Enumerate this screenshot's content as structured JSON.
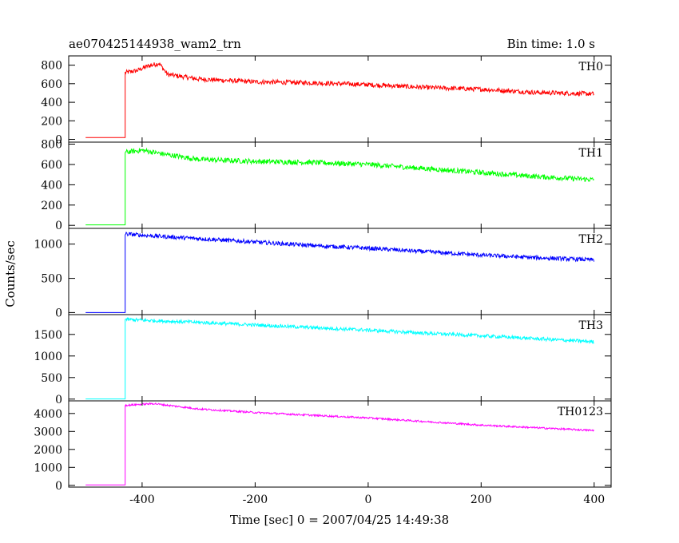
{
  "header": {
    "title": "ae070425144938_wam2_trn",
    "bin_time": "Bin time: 1.0 s"
  },
  "axes": {
    "ylabel": "Counts/sec",
    "xlabel": "Time [sec] 0 = 2007/04/25 14:49:38"
  },
  "chart_data": {
    "type": "line",
    "title": "ae070425144938_wam2_trn",
    "xlabel": "Time [sec] 0 = 2007/04/25 14:49:38",
    "ylabel": "Counts/sec",
    "xlim": [
      -530,
      430
    ],
    "xticks": [
      -400,
      -200,
      0,
      200,
      400
    ],
    "onset_time": -430,
    "panels": [
      {
        "name": "TH0",
        "color": "#ff0000",
        "ylim": [
          -30,
          900
        ],
        "yticks": [
          0,
          200,
          400,
          600,
          800
        ],
        "start_time": -500,
        "pre_level": 20,
        "points": [
          [
            -430,
            720
          ],
          [
            -410,
            740
          ],
          [
            -390,
            790
          ],
          [
            -370,
            820
          ],
          [
            -355,
            700
          ],
          [
            -300,
            650
          ],
          [
            -200,
            620
          ],
          [
            -100,
            610
          ],
          [
            0,
            590
          ],
          [
            100,
            560
          ],
          [
            200,
            540
          ],
          [
            300,
            505
          ],
          [
            400,
            490
          ]
        ],
        "noise": 25
      },
      {
        "name": "TH1",
        "color": "#00ff00",
        "ylim": [
          -30,
          820
        ],
        "yticks": [
          0,
          200,
          400,
          600,
          800
        ],
        "start_time": -500,
        "pre_level": 5,
        "points": [
          [
            -430,
            720
          ],
          [
            -400,
            740
          ],
          [
            -360,
            700
          ],
          [
            -300,
            650
          ],
          [
            -200,
            630
          ],
          [
            -100,
            620
          ],
          [
            0,
            600
          ],
          [
            100,
            560
          ],
          [
            200,
            520
          ],
          [
            300,
            480
          ],
          [
            400,
            450
          ]
        ],
        "noise": 25
      },
      {
        "name": "TH2",
        "color": "#0000ff",
        "ylim": [
          -30,
          1230
        ],
        "yticks": [
          0,
          500,
          1000
        ],
        "start_time": -500,
        "pre_level": 0,
        "points": [
          [
            -430,
            1150
          ],
          [
            -400,
            1130
          ],
          [
            -300,
            1080
          ],
          [
            -200,
            1030
          ],
          [
            -100,
            980
          ],
          [
            0,
            940
          ],
          [
            100,
            890
          ],
          [
            200,
            840
          ],
          [
            300,
            800
          ],
          [
            400,
            770
          ]
        ],
        "noise": 30
      },
      {
        "name": "TH3",
        "color": "#00ffff",
        "ylim": [
          -40,
          1960
        ],
        "yticks": [
          0,
          500,
          1000,
          1500
        ],
        "start_time": -500,
        "pre_level": 5,
        "points": [
          [
            -430,
            1850
          ],
          [
            -400,
            1830
          ],
          [
            -300,
            1780
          ],
          [
            -200,
            1720
          ],
          [
            -100,
            1660
          ],
          [
            0,
            1600
          ],
          [
            100,
            1530
          ],
          [
            200,
            1470
          ],
          [
            300,
            1400
          ],
          [
            400,
            1330
          ]
        ],
        "noise": 40
      },
      {
        "name": "TH0123",
        "color": "#ff00ff",
        "ylim": [
          -100,
          4700
        ],
        "yticks": [
          0,
          1000,
          2000,
          3000,
          4000
        ],
        "start_time": -500,
        "pre_level": 20,
        "points": [
          [
            -430,
            4450
          ],
          [
            -380,
            4550
          ],
          [
            -300,
            4250
          ],
          [
            -200,
            4050
          ],
          [
            -100,
            3900
          ],
          [
            0,
            3750
          ],
          [
            100,
            3550
          ],
          [
            200,
            3350
          ],
          [
            300,
            3200
          ],
          [
            400,
            3050
          ]
        ],
        "noise": 50
      }
    ]
  }
}
